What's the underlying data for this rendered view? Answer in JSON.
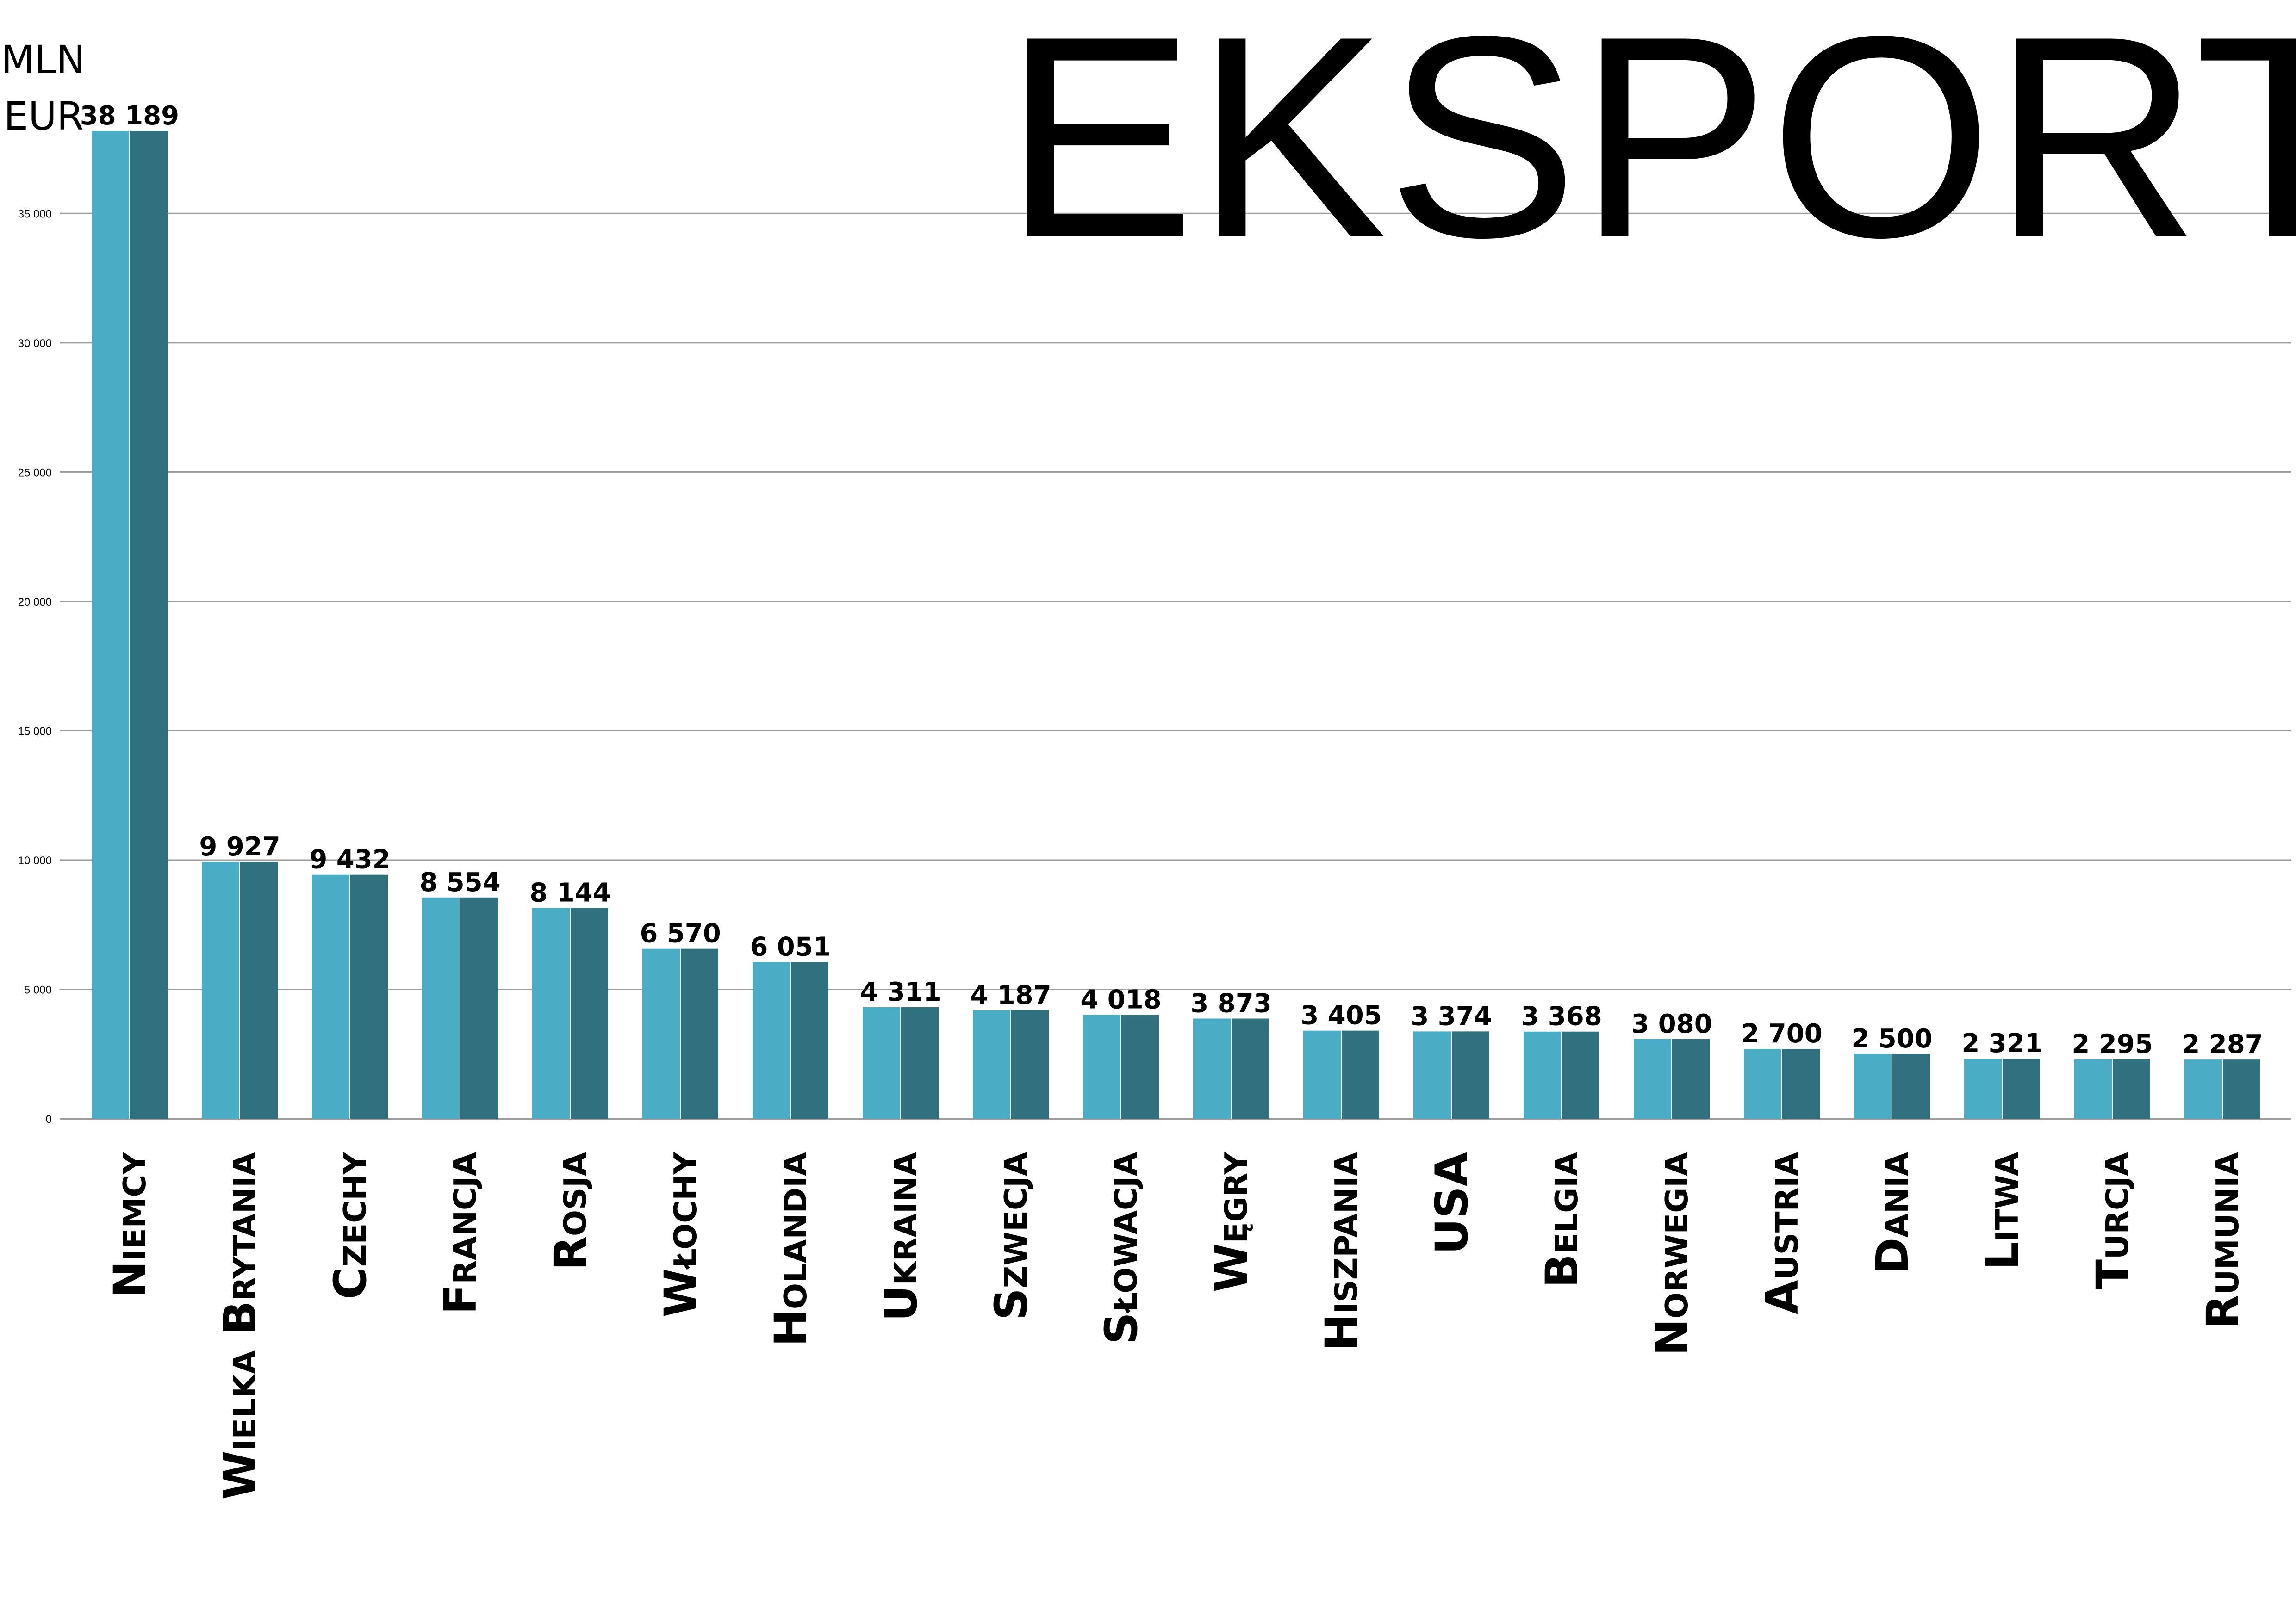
{
  "chart_data": {
    "type": "bar",
    "title": "EKSPORT",
    "unit_label": [
      "MLN",
      "EUR"
    ],
    "categories": [
      "Niemcy",
      "Wielka Brytania",
      "Czechy",
      "Francja",
      "Rosja",
      "Włochy",
      "Holandia",
      "Ukraina",
      "Szwecja",
      "Słowacja",
      "Węgry",
      "Hiszpania",
      "USA",
      "Belgia",
      "Norwegia",
      "Austria",
      "Dania",
      "Litwa",
      "Turcja",
      "Rumunia"
    ],
    "values": [
      38189,
      9927,
      9432,
      8554,
      8144,
      6570,
      6051,
      4311,
      4187,
      4018,
      3873,
      3405,
      3374,
      3368,
      3080,
      2700,
      2500,
      2321,
      2295,
      2287
    ],
    "value_labels": [
      "38 189",
      "9 927",
      "9 432",
      "8 554",
      "8 144",
      "6 570",
      "6 051",
      "4 311",
      "4 187",
      "4 018",
      "3 873",
      "3 405",
      "3 374",
      "3 368",
      "3 080",
      "2 700",
      "2 500",
      "2 321",
      "2 295",
      "2 287"
    ],
    "ylim": [
      0,
      38189
    ],
    "yticks": [
      0,
      5000,
      10000,
      15000,
      20000,
      25000,
      30000,
      35000
    ],
    "ytick_labels": [
      "0",
      "5 000",
      "10 000",
      "15 000",
      "20 000",
      "25 000",
      "30 000",
      "35 000"
    ],
    "grid": true,
    "legend": "none",
    "colors": {
      "bar_light": "#4BACC6",
      "bar_dark": "#31707F",
      "grid": "#9E9E9E",
      "text": "#000000"
    }
  }
}
